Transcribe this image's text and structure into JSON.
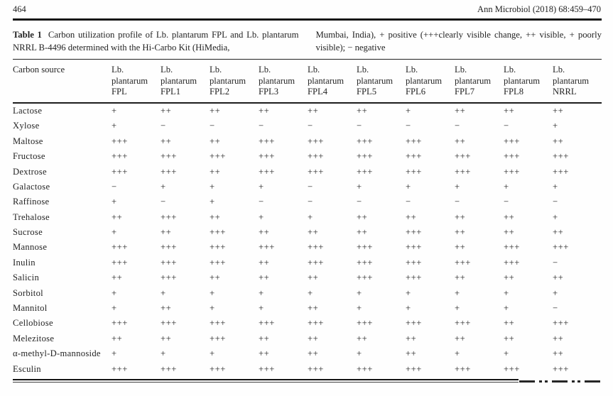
{
  "page_header": {
    "page_number": "464",
    "journal": "Ann Microbiol (2018) 68:459–470"
  },
  "caption": {
    "label": "Table 1",
    "text_left": "Carbon utilization profile of Lb. plantarum FPL and Lb. plantarum NRRL B-4496 determined with the Hi-Carbo Kit (HiMedia,",
    "text_right": "Mumbai, India), + positive (+++clearly visible change, ++ visible, + poorly visible); − negative"
  },
  "table": {
    "row_header": "Carbon source",
    "genus_line1": "Lb.",
    "genus_line2": "plantarum",
    "strains": [
      "FPL",
      "FPL1",
      "FPL2",
      "FPL3",
      "FPL4",
      "FPL5",
      "FPL6",
      "FPL7",
      "FPL8",
      "NRRL"
    ],
    "rows": [
      {
        "name": "Lactose",
        "values": [
          "+",
          "++",
          "++",
          "++",
          "++",
          "++",
          "+",
          "++",
          "++",
          "++"
        ]
      },
      {
        "name": "Xylose",
        "values": [
          "+",
          "−",
          "−",
          "−",
          "−",
          "−",
          "−",
          "−",
          "−",
          "+"
        ]
      },
      {
        "name": "Maltose",
        "values": [
          "+++",
          "++",
          "++",
          "+++",
          "+++",
          "+++",
          "+++",
          "++",
          "+++",
          "++"
        ]
      },
      {
        "name": "Fructose",
        "values": [
          "+++",
          "+++",
          "+++",
          "+++",
          "+++",
          "+++",
          "+++",
          "+++",
          "+++",
          "+++"
        ]
      },
      {
        "name": "Dextrose",
        "values": [
          "+++",
          "+++",
          "++",
          "+++",
          "+++",
          "+++",
          "+++",
          "+++",
          "+++",
          "+++"
        ]
      },
      {
        "name": "Galactose",
        "values": [
          "−",
          "+",
          "+",
          "+",
          "−",
          "+",
          "+",
          "+",
          "+",
          "+"
        ]
      },
      {
        "name": "Raffinose",
        "values": [
          "+",
          "−",
          "+",
          "−",
          "−",
          "−",
          "−",
          "−",
          "−",
          "−"
        ]
      },
      {
        "name": "Trehalose",
        "values": [
          "++",
          "+++",
          "++",
          "+",
          "+",
          "++",
          "++",
          "++",
          "++",
          "+"
        ]
      },
      {
        "name": "Sucrose",
        "values": [
          "+",
          "++",
          "+++",
          "++",
          "++",
          "++",
          "+++",
          "++",
          "++",
          "++"
        ]
      },
      {
        "name": "Mannose",
        "values": [
          "+++",
          "+++",
          "+++",
          "+++",
          "+++",
          "+++",
          "+++",
          "++",
          "+++",
          "+++"
        ]
      },
      {
        "name": "Inulin",
        "values": [
          "+++",
          "+++",
          "+++",
          "++",
          "+++",
          "+++",
          "+++",
          "+++",
          "+++",
          "−"
        ]
      },
      {
        "name": "Salicin",
        "values": [
          "++",
          "+++",
          "++",
          "++",
          "++",
          "+++",
          "+++",
          "++",
          "++",
          "++"
        ]
      },
      {
        "name": "Sorbitol",
        "values": [
          "+",
          "+",
          "+",
          "+",
          "+",
          "+",
          "+",
          "+",
          "+",
          "+"
        ]
      },
      {
        "name": "Mannitol",
        "values": [
          "+",
          "++",
          "+",
          "+",
          "++",
          "+",
          "+",
          "+",
          "+",
          "−"
        ]
      },
      {
        "name": "Cellobiose",
        "values": [
          "+++",
          "+++",
          "+++",
          "+++",
          "+++",
          "+++",
          "+++",
          "+++",
          "++",
          "+++"
        ]
      },
      {
        "name": "Melezitose",
        "values": [
          "++",
          "++",
          "+++",
          "++",
          "++",
          "++",
          "++",
          "++",
          "++",
          "++"
        ]
      },
      {
        "name": "α-methyl-D-mannoside",
        "values": [
          "+",
          "+",
          "+",
          "++",
          "++",
          "+",
          "++",
          "+",
          "+",
          "++"
        ]
      },
      {
        "name": "Esculin",
        "values": [
          "+++",
          "+++",
          "+++",
          "+++",
          "+++",
          "+++",
          "+++",
          "+++",
          "+++",
          "+++"
        ]
      }
    ]
  }
}
